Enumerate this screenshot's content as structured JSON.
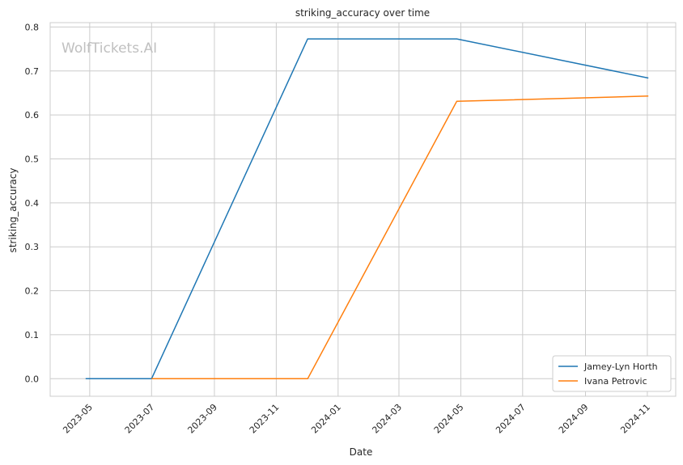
{
  "chart_data": {
    "type": "line",
    "title": "striking_accuracy over time",
    "xlabel": "Date",
    "ylabel": "striking_accuracy",
    "watermark": "WolfTickets.AI",
    "xlim": [
      "2023-03-23",
      "2024-11-29"
    ],
    "ylim": [
      -0.04,
      0.81
    ],
    "x_ticks": [
      "2023-05",
      "2023-07",
      "2023-09",
      "2023-11",
      "2024-01",
      "2024-03",
      "2024-05",
      "2024-07",
      "2024-09",
      "2024-11"
    ],
    "y_ticks": [
      "0.0",
      "0.1",
      "0.2",
      "0.3",
      "0.4",
      "0.5",
      "0.6",
      "0.7",
      "0.8"
    ],
    "grid": true,
    "legend_position": "lower-right",
    "series": [
      {
        "name": "Jamey-Lyn Horth",
        "color": "#1f77b4",
        "points": [
          {
            "x": "2023-04-27",
            "y": 0.0
          },
          {
            "x": "2023-07-01",
            "y": 0.0
          },
          {
            "x": "2023-12-02",
            "y": 0.773
          },
          {
            "x": "2024-04-27",
            "y": 0.773
          },
          {
            "x": "2024-11-02",
            "y": 0.684
          }
        ]
      },
      {
        "name": "Ivana Petrovic",
        "color": "#ff7f0e",
        "points": [
          {
            "x": "2023-07-01",
            "y": 0.0
          },
          {
            "x": "2023-12-02",
            "y": 0.0
          },
          {
            "x": "2024-04-27",
            "y": 0.631
          },
          {
            "x": "2024-11-02",
            "y": 0.643
          }
        ]
      }
    ]
  }
}
